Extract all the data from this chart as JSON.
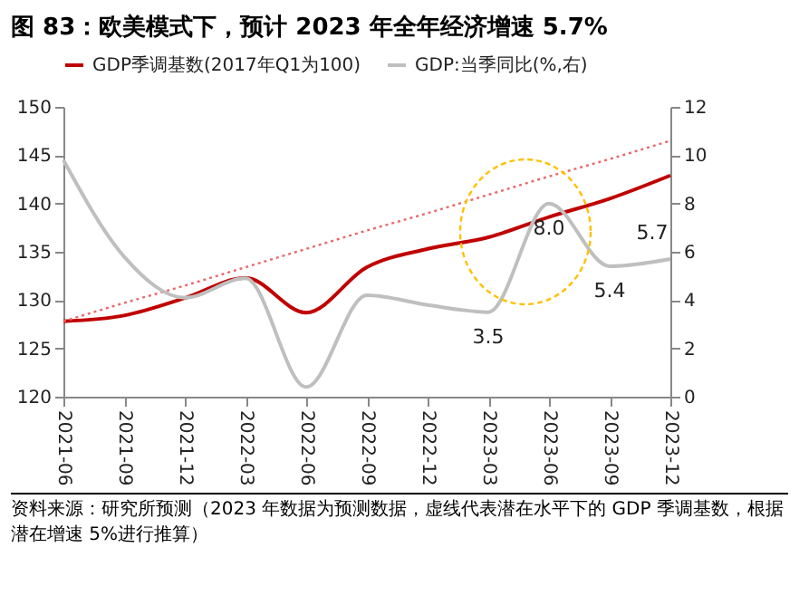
{
  "chart_data": {
    "type": "line",
    "title": "图 83：欧美模式下，预计 2023 年全年经济增速 5.7%",
    "categories": [
      "2021-06",
      "2021-09",
      "2021-12",
      "2022-03",
      "2022-06",
      "2022-09",
      "2022-12",
      "2023-03",
      "2023-06",
      "2023-09",
      "2023-12"
    ],
    "series": [
      {
        "name": "GDP季调基数(2017年Q1为100)",
        "color": "#c00000",
        "values": [
          127.8,
          128.4,
          130.2,
          132.3,
          128.7,
          133.4,
          135.3,
          136.5,
          138.6,
          140.5,
          142.9
        ]
      },
      {
        "name": "GDP:当季同比(%,右)",
        "color": "#bfbfbf",
        "axis": "y2",
        "values": [
          9.8,
          5.8,
          4.1,
          4.9,
          0.4,
          4.2,
          3.8,
          3.5,
          8.0,
          5.4,
          5.7
        ],
        "value_labels": [
          null,
          null,
          null,
          null,
          null,
          null,
          null,
          "3.5",
          "8.0",
          "5.4",
          "5.7"
        ]
      },
      {
        "color": "#e8696b",
        "line_style": "dotted",
        "values": [
          127.8,
          129.7,
          131.5,
          133.4,
          135.3,
          137.2,
          139.0,
          140.9,
          142.8,
          144.6,
          146.5
        ]
      }
    ],
    "ylim": [
      120,
      150
    ],
    "yticks": [
      120,
      125,
      130,
      135,
      140,
      145,
      150
    ],
    "y2lim": [
      0,
      12
    ],
    "y2ticks": [
      0,
      2,
      4,
      6,
      8,
      10,
      12
    ],
    "grid": false,
    "legend": "top",
    "annotations": [
      "资料来源：研究所预测（2023 年数据为预测数据，虚线代表潜在水平下的 GDP 季调基数，根据潜在增速 5%进行推算）"
    ]
  }
}
